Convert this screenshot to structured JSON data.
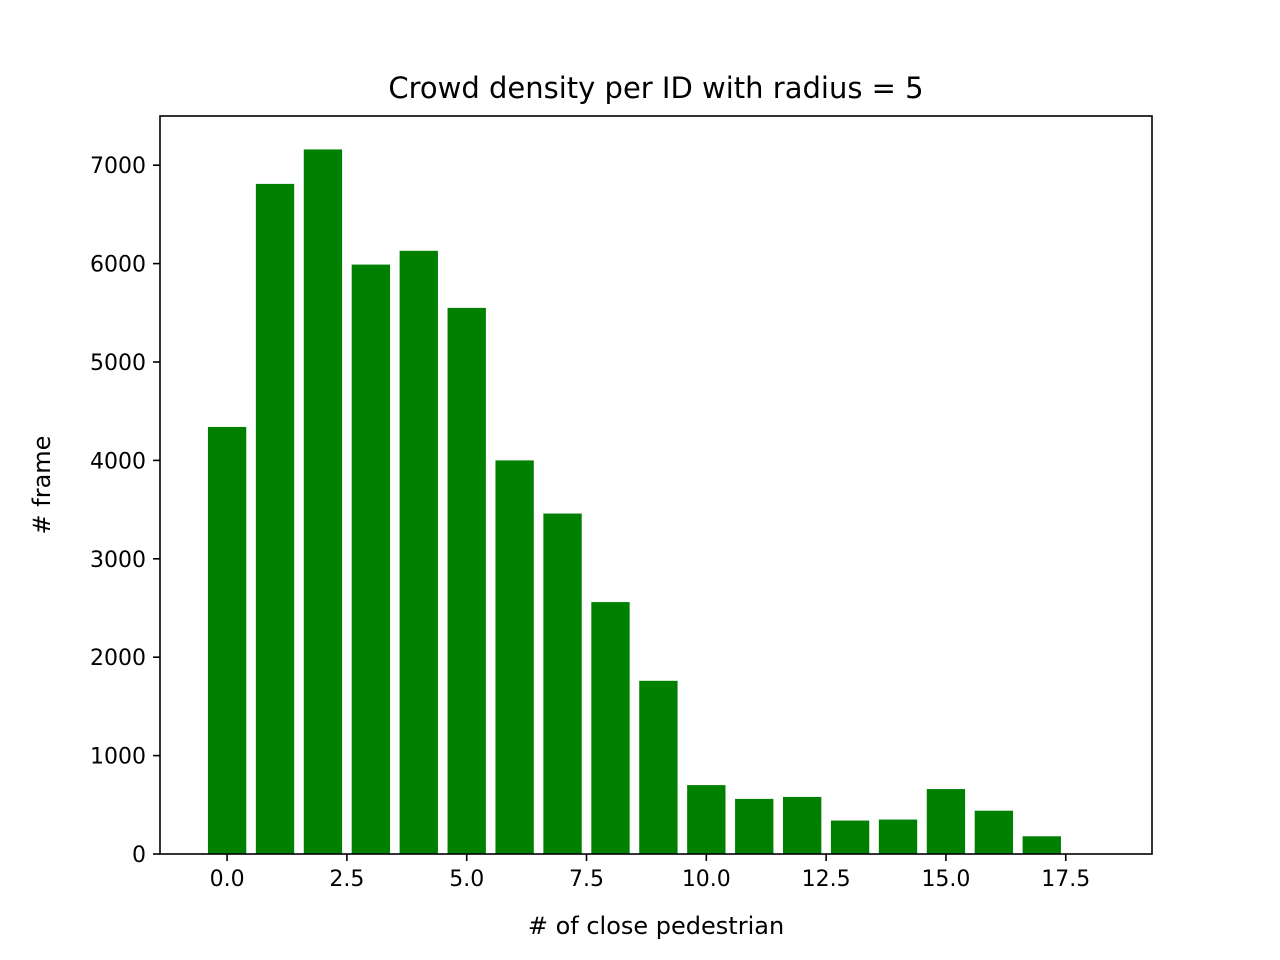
{
  "chart_data": {
    "type": "bar",
    "title": "Crowd density per ID with radius = 5",
    "xlabel": "# of close pedestrian",
    "ylabel": "# frame",
    "x": [
      0,
      1,
      2,
      3,
      4,
      5,
      6,
      7,
      8,
      9,
      10,
      11,
      12,
      13,
      14,
      15,
      16,
      17,
      18
    ],
    "values": [
      4340,
      6810,
      7160,
      5990,
      6130,
      5550,
      4000,
      3460,
      2560,
      1760,
      700,
      560,
      580,
      340,
      350,
      660,
      440,
      180,
      0
    ],
    "bar_color": "#008000",
    "xlim": [
      -1.4,
      19.3
    ],
    "ylim": [
      0,
      7500
    ],
    "xticks": [
      0,
      2.5,
      5,
      7.5,
      10,
      12.5,
      15,
      17.5
    ],
    "xtick_labels": [
      "0.0",
      "2.5",
      "5.0",
      "7.5",
      "10.0",
      "12.5",
      "15.0",
      "17.5"
    ],
    "yticks": [
      0,
      1000,
      2000,
      3000,
      4000,
      5000,
      6000,
      7000
    ],
    "ytick_labels": [
      "0",
      "1000",
      "2000",
      "3000",
      "4000",
      "5000",
      "6000",
      "7000"
    ],
    "grid": false,
    "legend": "none"
  }
}
